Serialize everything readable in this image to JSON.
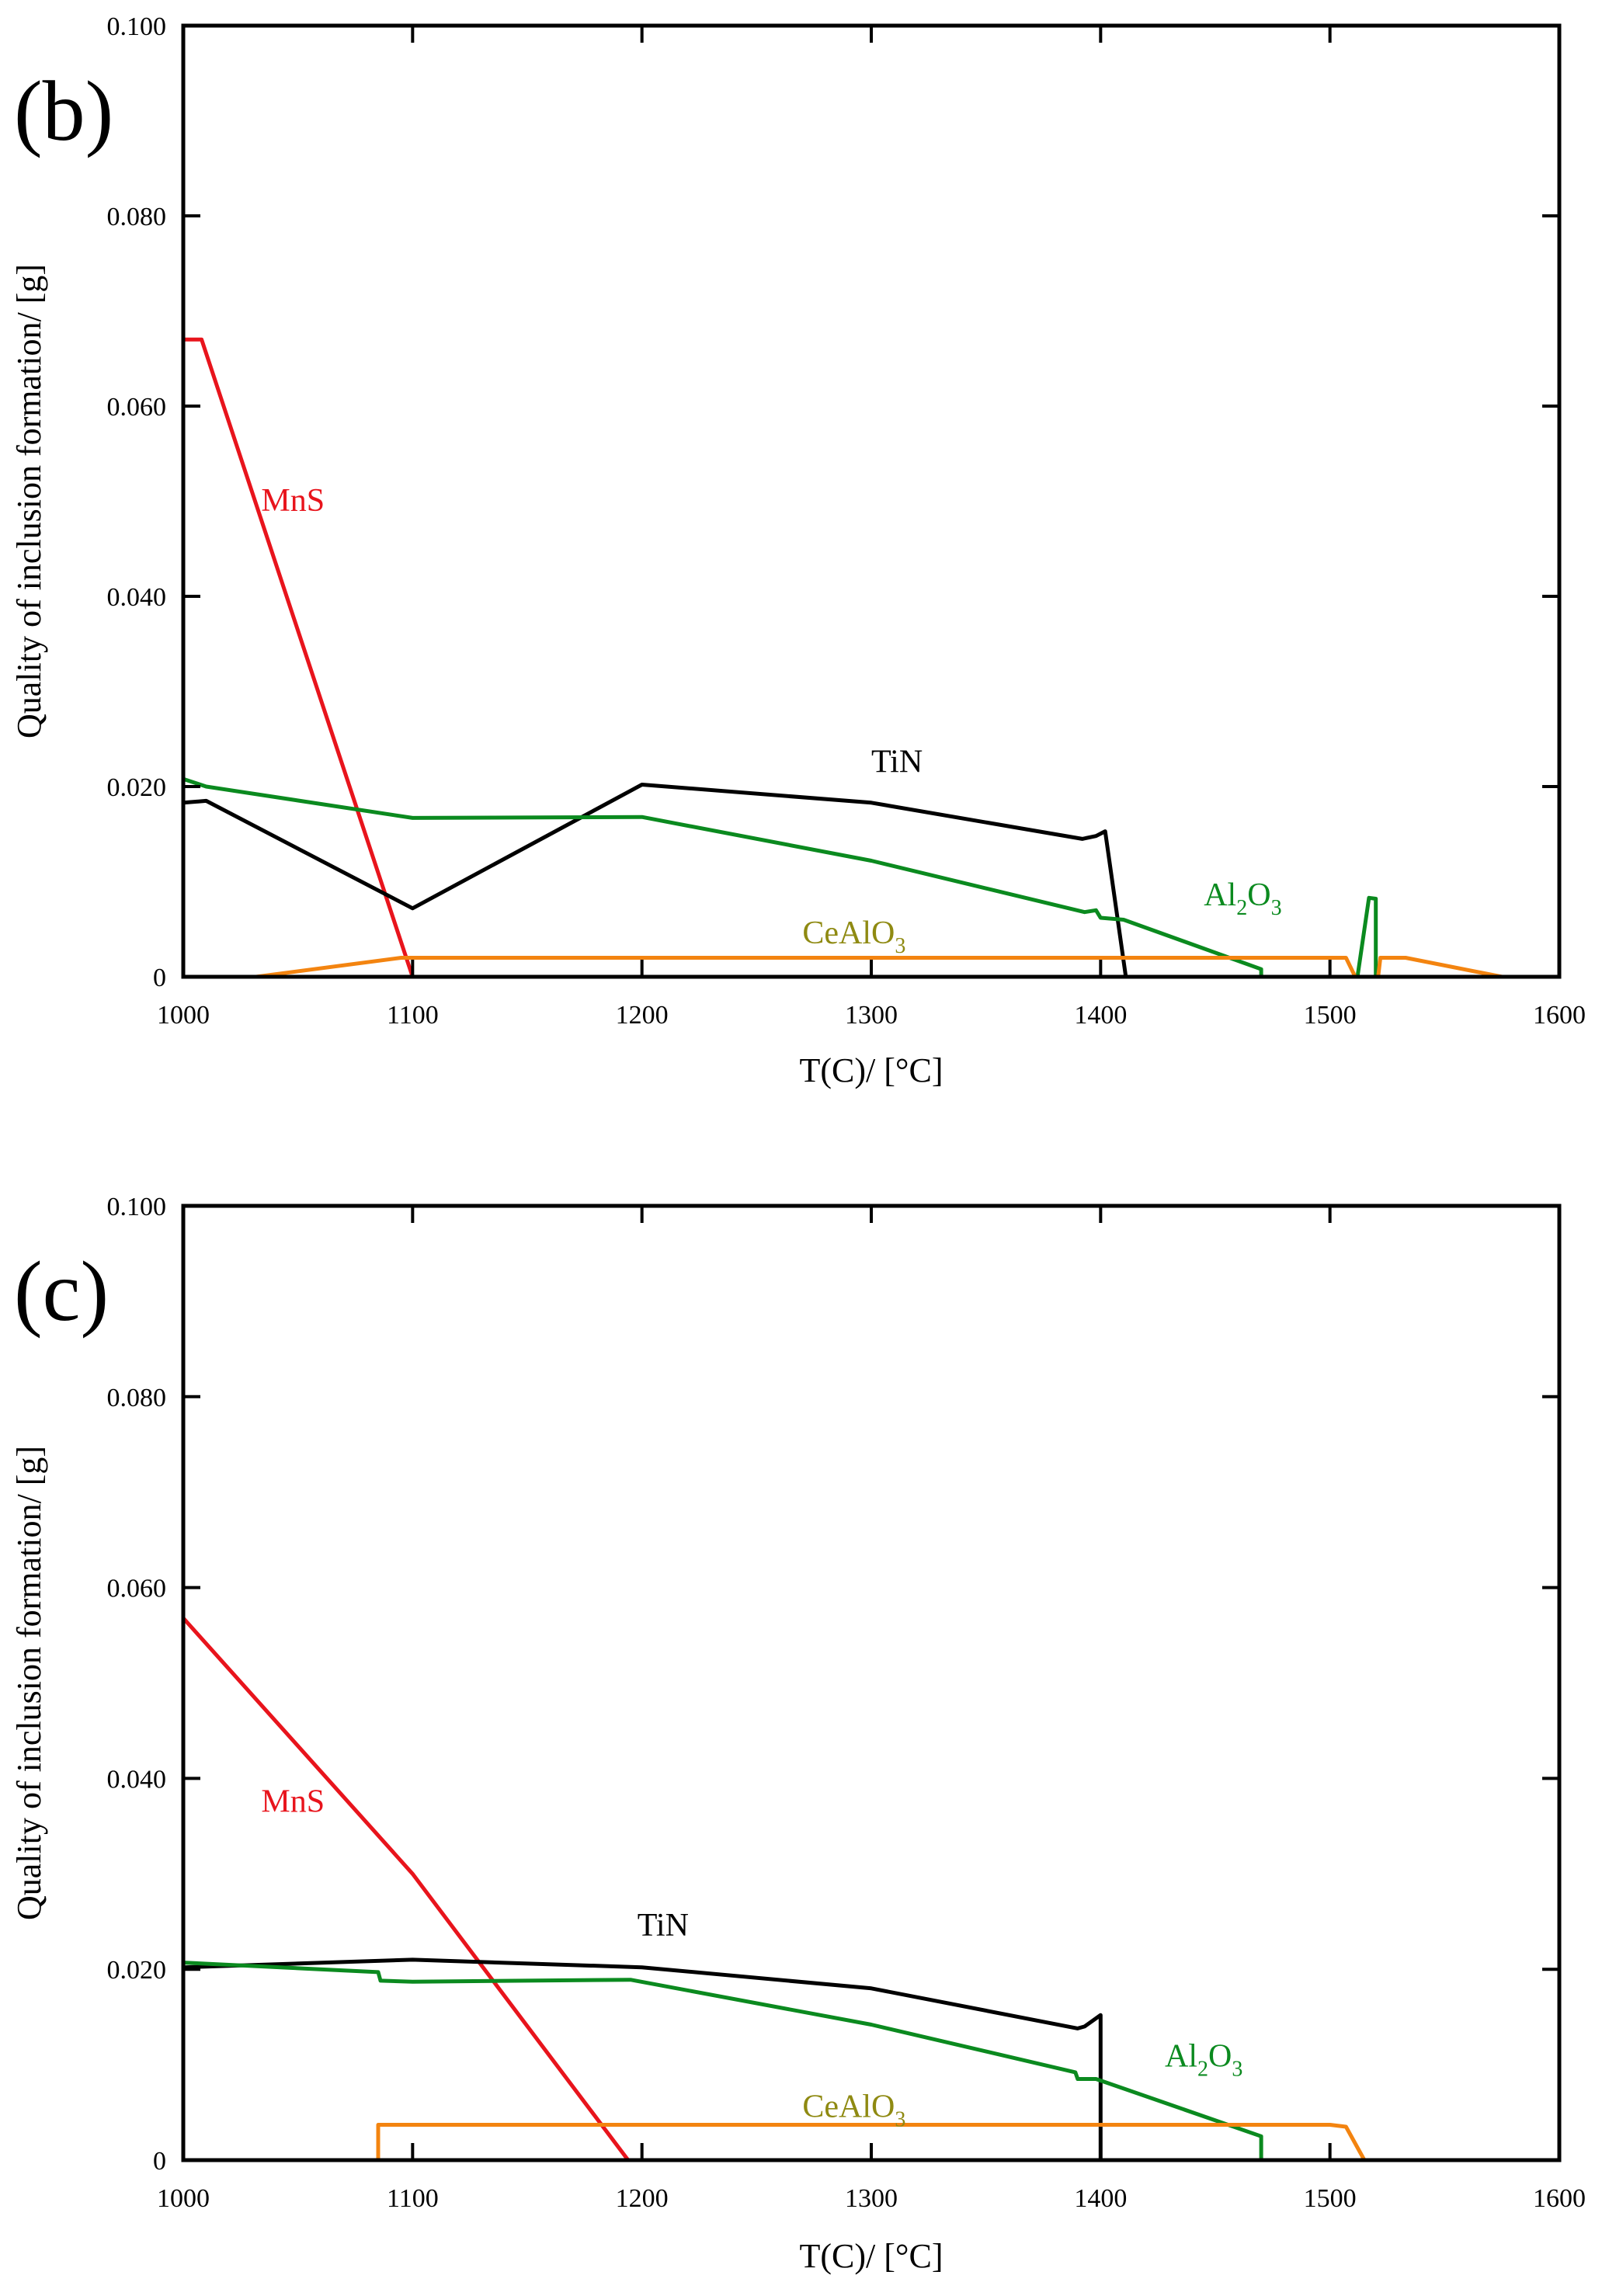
{
  "chart_data": [
    {
      "type": "line",
      "panel_label": "(b)",
      "xlabel": "T(C)/ [°C]",
      "ylabel": "Quality of inclusion formation/ [g]",
      "xlim": [
        1000,
        1600
      ],
      "ylim": [
        0,
        0.1
      ],
      "x_ticks": [
        "1000",
        "1100",
        "1200",
        "1300",
        "1400",
        "1500",
        "1600"
      ],
      "y_ticks": [
        "0",
        "0.020",
        "0.040",
        "0.060",
        "0.080",
        "0.100"
      ],
      "series": [
        {
          "name": "MnS",
          "name_main": "MnS",
          "color": "#e8141c",
          "points": [
            [
              1000,
              0.067
            ],
            [
              1008,
              0.067
            ],
            [
              1100,
              0.0
            ]
          ],
          "label_at": [
            1034,
            0.049
          ]
        },
        {
          "name": "TiN",
          "name_main": "TiN",
          "color": "#000000",
          "points": [
            [
              1000,
              0.0183
            ],
            [
              1010,
              0.0185
            ],
            [
              1100,
              0.0072
            ],
            [
              1200,
              0.0202
            ],
            [
              1300,
              0.0183
            ],
            [
              1392,
              0.0145
            ],
            [
              1398,
              0.0148
            ],
            [
              1402,
              0.0153
            ],
            [
              1411,
              0.0
            ]
          ],
          "label_at": [
            1300,
            0.0215
          ]
        },
        {
          "name": "Al2O3",
          "name_main": "Al",
          "name_sub1": "2",
          "name_mid": "O",
          "name_sub2": "3",
          "color": "#0b8a1f",
          "points": [
            [
              1000,
              0.0208
            ],
            [
              1010,
              0.02
            ],
            [
              1100,
              0.0167
            ],
            [
              1200,
              0.0168
            ],
            [
              1300,
              0.0122
            ],
            [
              1393,
              0.0068
            ],
            [
              1398,
              0.007
            ],
            [
              1400,
              0.0062
            ],
            [
              1410,
              0.006
            ],
            [
              1470,
              0.0008
            ],
            [
              1470,
              0.0
            ],
            [
              1512,
              0.0
            ],
            [
              1517,
              0.0083
            ],
            [
              1520,
              0.0082
            ],
            [
              1520,
              0.0
            ]
          ],
          "label_at": [
            1445,
            0.0075
          ]
        },
        {
          "name": "CeAlO3",
          "name_main": "CeAlO",
          "name_sub1": "3",
          "color": "#f38410",
          "label_color": "#8f8a12",
          "points": [
            [
              1000,
              -0.001
            ],
            [
              1095,
              0.002
            ],
            [
              1507,
              0.002
            ],
            [
              1511,
              0.0
            ],
            [
              1521,
              0.0
            ],
            [
              1522,
              0.002
            ],
            [
              1533,
              0.002
            ],
            [
              1575,
              0.0
            ]
          ],
          "label_at": [
            1270,
            0.0035
          ]
        }
      ]
    },
    {
      "type": "line",
      "panel_label": "(c)",
      "xlabel": "T(C)/ [°C]",
      "ylabel": "Quality of inclusion formation/ [g]",
      "xlim": [
        1000,
        1600
      ],
      "ylim": [
        0,
        0.1
      ],
      "x_ticks": [
        "1000",
        "1100",
        "1200",
        "1300",
        "1400",
        "1500",
        "1600"
      ],
      "y_ticks": [
        "0",
        "0.020",
        "0.040",
        "0.060",
        "0.080",
        "0.100"
      ],
      "series": [
        {
          "name": "MnS",
          "name_main": "MnS",
          "color": "#e8141c",
          "points": [
            [
              1000,
              0.0568
            ],
            [
              1100,
              0.03
            ],
            [
              1194,
              0.0
            ]
          ],
          "label_at": [
            1034,
            0.0365
          ]
        },
        {
          "name": "TiN",
          "name_main": "TiN",
          "color": "#000000",
          "points": [
            [
              1000,
              0.0202
            ],
            [
              1100,
              0.021
            ],
            [
              1200,
              0.0202
            ],
            [
              1300,
              0.018
            ],
            [
              1390,
              0.0138
            ],
            [
              1393,
              0.014
            ],
            [
              1400,
              0.0152
            ],
            [
              1400,
              0.0
            ]
          ],
          "label_at": [
            1198,
            0.0235
          ]
        },
        {
          "name": "Al2O3",
          "name_main": "Al",
          "name_sub1": "2",
          "name_mid": "O",
          "name_sub2": "3",
          "color": "#0b8a1f",
          "points": [
            [
              1000,
              0.0207
            ],
            [
              1085,
              0.0197
            ],
            [
              1086,
              0.0188
            ],
            [
              1100,
              0.0187
            ],
            [
              1195,
              0.0189
            ],
            [
              1300,
              0.0142
            ],
            [
              1389,
              0.0092
            ],
            [
              1390,
              0.0085
            ],
            [
              1398,
              0.0085
            ],
            [
              1470,
              0.0025
            ],
            [
              1470,
              0.0
            ]
          ],
          "label_at": [
            1428,
            0.0098
          ]
        },
        {
          "name": "CeAlO3",
          "name_main": "CeAlO",
          "name_sub1": "3",
          "color": "#f38410",
          "label_color": "#8f8a12",
          "points": [
            [
              1085,
              0.0
            ],
            [
              1085,
              0.0037
            ],
            [
              1500,
              0.0037
            ],
            [
              1507,
              0.0035
            ],
            [
              1515,
              0.0
            ]
          ],
          "label_at": [
            1270,
            0.0045
          ]
        }
      ]
    }
  ]
}
